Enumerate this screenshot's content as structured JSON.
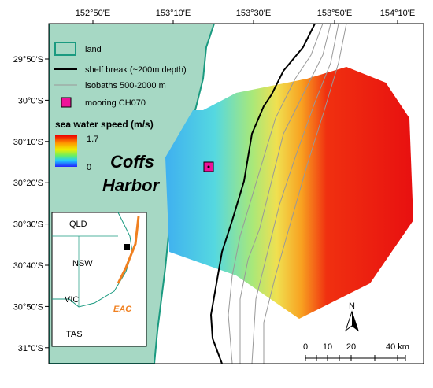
{
  "map": {
    "lon_ticks": [
      "152°50'E",
      "153°10'E",
      "153°30'E",
      "153°50'E",
      "154°10'E"
    ],
    "lat_ticks": [
      "29°50'S",
      "30°0'S",
      "30°10'S",
      "30°20'S",
      "30°30'S",
      "30°40'S",
      "30°50'S",
      "31°0'S"
    ],
    "legend": {
      "land": "land",
      "shelf": "shelf break (~200m depth)",
      "isobaths": "isobaths 500-2000 m",
      "mooring": "mooring CH070",
      "colorbar_title": "sea water speed (m/s)",
      "colorbar_max": 1.7,
      "colorbar_min": 0
    },
    "place": [
      "Coffs",
      "Harbor"
    ],
    "inset": {
      "labels": [
        "QLD",
        "NSW",
        "VIC",
        "TAS"
      ],
      "current": "EAC"
    },
    "north": "N",
    "scale": [
      "0",
      "10",
      "20",
      "40 km"
    ]
  }
}
